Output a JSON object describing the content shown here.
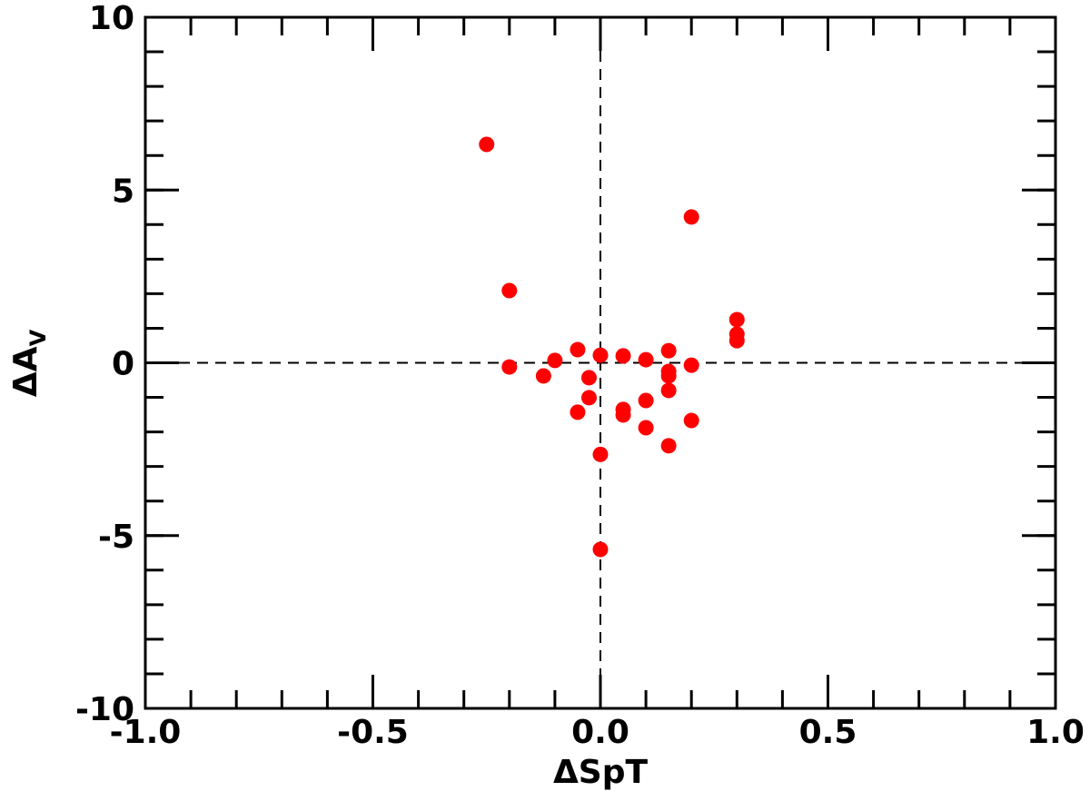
{
  "chart_data": {
    "type": "scatter",
    "xlabel": "ΔSpT",
    "ylabel": {
      "text": "ΔA",
      "subscript": "V"
    },
    "xlim": [
      -1,
      1
    ],
    "ylim": [
      -10,
      10
    ],
    "xticks": [
      {
        "value": -1,
        "label": "-1.0"
      },
      -0.5,
      {
        "value": 0,
        "label": "0.0"
      },
      0.5,
      {
        "value": 1,
        "label": "1.0"
      }
    ],
    "yticks": [
      -10,
      -5,
      0,
      5,
      10
    ],
    "x_minor_step": 0.1,
    "y_minor_step": 1,
    "hlines": [
      0
    ],
    "vlines": [
      0
    ],
    "series": [
      {
        "color": "#ff0000",
        "x": [
          -0.25,
          0.2,
          -0.2,
          0.3,
          0.3,
          0.3,
          -0.05,
          0.15,
          0.05,
          0.0,
          0.1,
          -0.1,
          -0.2,
          0.2,
          0.15,
          0.15,
          -0.125,
          -0.025,
          0.15,
          -0.025,
          0.1,
          0.05,
          0.05,
          -0.05,
          0.2,
          0.1,
          0.15,
          0.0,
          0.0
        ],
        "values": [
          6.32,
          4.22,
          2.09,
          1.25,
          0.83,
          0.64,
          0.38,
          0.35,
          0.2,
          0.22,
          0.09,
          0.07,
          -0.12,
          -0.07,
          -0.25,
          -0.38,
          -0.38,
          -0.43,
          -0.8,
          -1.01,
          -1.09,
          -1.35,
          -1.51,
          -1.43,
          -1.67,
          -1.88,
          -2.4,
          -2.65,
          -5.4
        ]
      }
    ]
  }
}
